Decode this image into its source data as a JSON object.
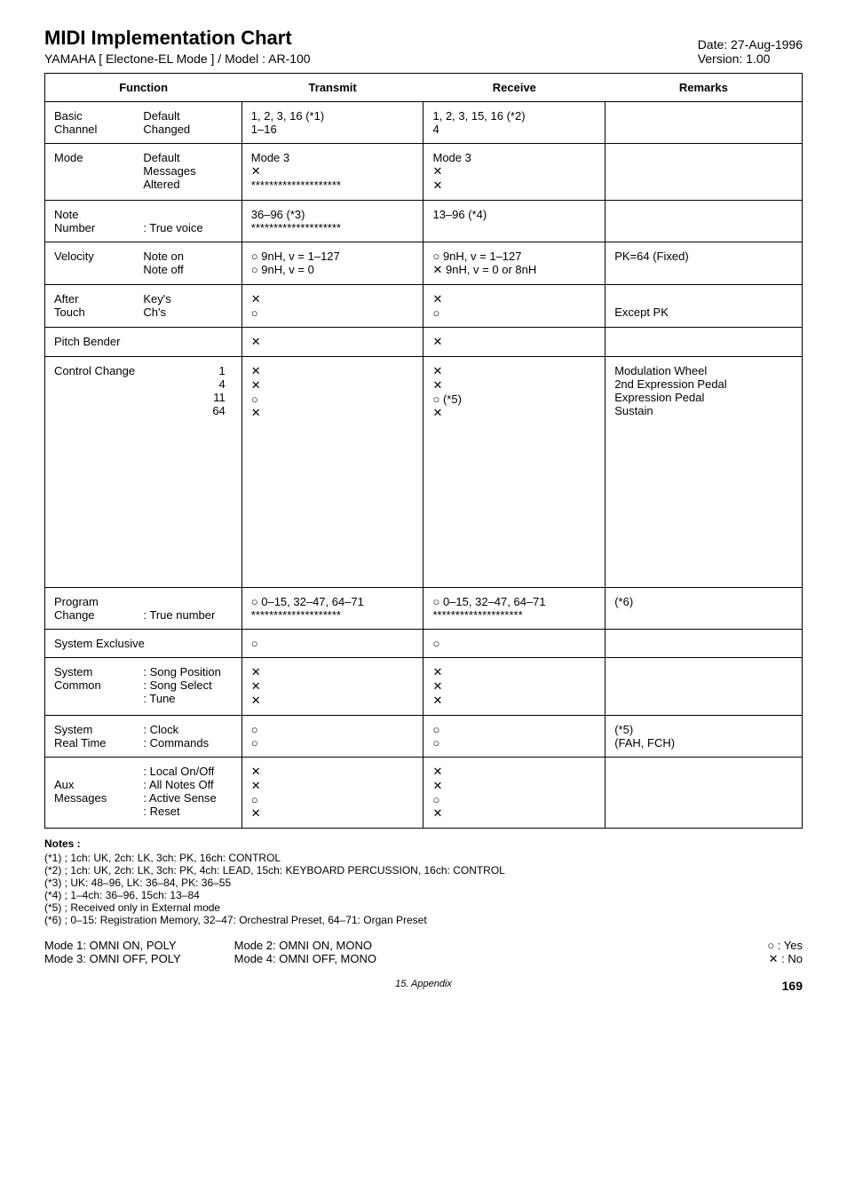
{
  "header": {
    "title": "MIDI Implementation Chart",
    "subtitle": "YAMAHA  [ Electone-EL Mode ] / Model : AR-100",
    "date": "Date: 27-Aug-1996",
    "version": "Version: 1.00"
  },
  "columns": {
    "function": "Function",
    "transmit": "Transmit",
    "receive": "Receive",
    "remarks": "Remarks"
  },
  "rows": {
    "basic_channel": {
      "f_l": "Basic\nChannel",
      "f_r": "Default\nChanged",
      "tx": "1, 2, 3, 16   (*1)\n1–16",
      "rx": "1, 2, 3, 15, 16   (*2)\n4",
      "rm": ""
    },
    "mode": {
      "f_l": "Mode",
      "f_r": "Default\nMessages\nAltered",
      "tx": "Mode 3\n✕\n********************",
      "rx": "Mode 3\n✕\n✕",
      "rm": ""
    },
    "note_number": {
      "f_l": "Note\nNumber",
      "f_r": "\n: True voice",
      "tx": "36–96   (*3)\n********************",
      "rx": "13–96   (*4)",
      "rm": ""
    },
    "velocity": {
      "f_l": "Velocity",
      "f_r": "Note on\nNote off",
      "tx": "○  9nH, v = 1–127\n○  9nH, v = 0",
      "rx": "○  9nH, v = 1–127\n✕  9nH, v = 0 or 8nH",
      "rm": "PK=64 (Fixed)"
    },
    "after_touch": {
      "f_l": "After\nTouch",
      "f_r": "Key's\nCh's",
      "tx": "✕\n○",
      "rx": "✕\n○",
      "rm": "\nExcept PK"
    },
    "pitch_bender": {
      "f_l": "Pitch Bender",
      "f_r": "",
      "tx": "✕",
      "rx": "✕",
      "rm": ""
    },
    "control_change": {
      "f_l": "Control Change",
      "f_r": "1\n4\n11\n64",
      "tx": "✕\n✕\n○\n✕",
      "rx": "✕\n✕\n○ (*5)\n✕",
      "rm": "Modulation Wheel\n2nd Expression Pedal\nExpression Pedal\nSustain"
    },
    "program_change": {
      "f_l": "Program\nChange",
      "f_r": "\n: True number",
      "tx": "○  0–15, 32–47, 64–71\n********************",
      "rx": "○  0–15, 32–47, 64–71\n********************",
      "rm": "(*6)"
    },
    "system_exclusive": {
      "f_l": "System Exclusive",
      "f_r": "",
      "tx": "○",
      "rx": "○",
      "rm": ""
    },
    "system_common": {
      "f_l": "System\nCommon",
      "f_r": ": Song Position\n: Song Select\n: Tune",
      "tx": "✕\n✕\n✕",
      "rx": "✕\n✕\n✕",
      "rm": ""
    },
    "system_realtime": {
      "f_l": "System\nReal Time",
      "f_r": ": Clock\n: Commands",
      "tx": "○\n○",
      "rx": "○\n○",
      "rm": "(*5)\n(FAH, FCH)"
    },
    "aux_messages": {
      "f_l": "\nAux\nMessages",
      "f_r": ": Local On/Off\n: All Notes Off\n: Active Sense\n: Reset",
      "tx": "✕\n✕\n○\n✕",
      "rx": "✕\n✕\n○\n✕",
      "rm": ""
    }
  },
  "notes": {
    "title": "Notes :",
    "lines": [
      "(*1) ;  1ch: UK, 2ch: LK, 3ch: PK, 16ch: CONTROL",
      "(*2) ;  1ch: UK, 2ch: LK, 3ch: PK, 4ch: LEAD, 15ch: KEYBOARD PERCUSSION, 16ch: CONTROL",
      "(*3) ;  UK: 48–96, LK: 36–84, PK: 36–55",
      "(*4) ;  1–4ch: 36–96, 15ch: 13–84",
      "(*5) ;  Received only in External mode",
      "(*6) ;  0–15: Registration Memory, 32–47: Orchestral Preset, 64–71: Organ Preset"
    ]
  },
  "footer": {
    "mode1": "Mode 1: OMNI ON,  POLY",
    "mode2": "Mode 2: OMNI ON,  MONO",
    "mode3": "Mode 3: OMNI OFF, POLY",
    "mode4": "Mode 4: OMNI OFF, MONO",
    "legend_yes": "○ : Yes",
    "legend_no": "✕ : No"
  },
  "page": {
    "section": "15. Appendix",
    "number": "169"
  }
}
